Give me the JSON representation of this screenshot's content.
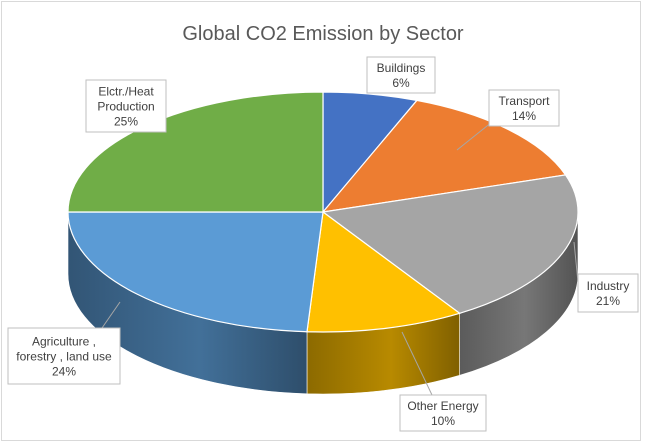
{
  "chart_data": {
    "type": "pie",
    "title": "Global CO2 Emission by Sector",
    "slices": [
      {
        "label_lines": [
          "Buildings"
        ],
        "value": 6,
        "value_label": "6%",
        "color": "#4472c4"
      },
      {
        "label_lines": [
          "Transport"
        ],
        "value": 14,
        "value_label": "14%",
        "color": "#ed7d31"
      },
      {
        "label_lines": [
          "Industry"
        ],
        "value": 21,
        "value_label": "21%",
        "color": "#a5a5a5"
      },
      {
        "label_lines": [
          "Other Energy"
        ],
        "value": 10,
        "value_label": "10%",
        "color": "#ffc000"
      },
      {
        "label_lines": [
          "Agriculture ,",
          "forestry , land use"
        ],
        "value": 24,
        "value_label": "24%",
        "color": "#5b9bd5"
      },
      {
        "label_lines": [
          "Elctr./Heat",
          "Production"
        ],
        "value": 25,
        "value_label": "25%",
        "color": "#70ad47"
      }
    ],
    "style": "3d",
    "legend": "none"
  }
}
